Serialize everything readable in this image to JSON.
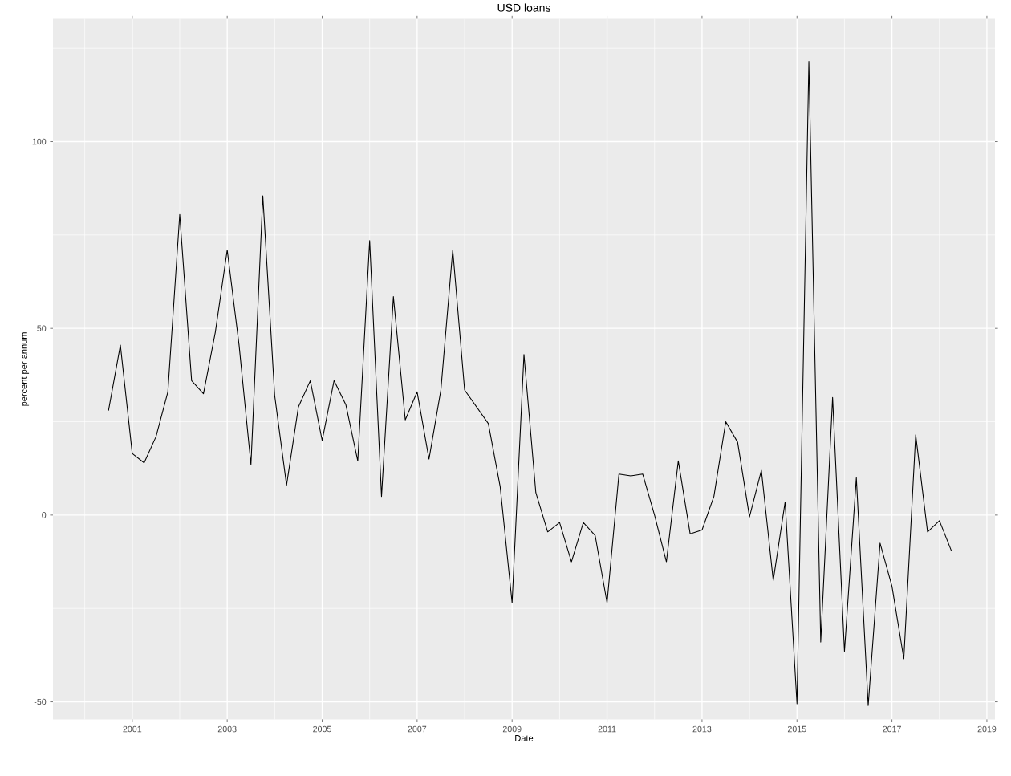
{
  "chart_data": {
    "type": "line",
    "title": "USD loans",
    "xlabel": "Date",
    "ylabel": "percent per annum",
    "color": "#000000",
    "grid": true,
    "x": [
      "2000-07",
      "2000-10",
      "2001-01",
      "2001-04",
      "2001-07",
      "2001-10",
      "2002-01",
      "2002-04",
      "2002-07",
      "2002-10",
      "2003-01",
      "2003-04",
      "2003-07",
      "2003-10",
      "2004-01",
      "2004-04",
      "2004-07",
      "2004-10",
      "2005-01",
      "2005-04",
      "2005-07",
      "2005-10",
      "2006-01",
      "2006-04",
      "2006-07",
      "2006-10",
      "2007-01",
      "2007-04",
      "2007-07",
      "2007-10",
      "2008-01",
      "2008-07",
      "2008-10",
      "2009-01",
      "2009-04",
      "2009-07",
      "2009-10",
      "2010-01",
      "2010-04",
      "2010-07",
      "2010-10",
      "2011-01",
      "2011-04",
      "2011-07",
      "2011-10",
      "2012-01",
      "2012-04",
      "2012-07",
      "2012-10",
      "2013-01",
      "2013-04",
      "2013-07",
      "2013-10",
      "2014-01",
      "2014-04",
      "2014-07",
      "2014-10",
      "2015-01",
      "2015-04",
      "2015-07",
      "2015-10",
      "2016-01",
      "2016-04",
      "2016-07",
      "2016-10",
      "2017-01",
      "2017-04",
      "2017-07",
      "2017-10",
      "2018-01",
      "2018-04"
    ],
    "values": [
      28,
      45.5,
      16.5,
      14,
      21,
      33,
      80.5,
      36,
      32.5,
      49,
      71,
      45.5,
      13.5,
      85.5,
      32,
      8,
      29,
      36,
      20,
      36,
      29.5,
      14.5,
      73.5,
      5,
      58.5,
      25.5,
      33,
      15,
      33.5,
      71,
      33.5,
      24.5,
      7.5,
      -23.5,
      43,
      6,
      -4.5,
      -2,
      -12.5,
      -2,
      -5.5,
      -23.5,
      11,
      10.5,
      11,
      0,
      -12.5,
      14.5,
      -5,
      -4,
      5,
      25,
      19.5,
      -0.5,
      12,
      -17.5,
      3.5,
      -50.5,
      121.5,
      -34,
      31.5,
      -36.5,
      10,
      -51,
      -7.5,
      -19,
      -38.5,
      21.5,
      -4.5,
      -1.5,
      -9.5
    ],
    "xlim": [
      "1999-05",
      "2019-03"
    ],
    "ylim": [
      -54.7,
      132.9
    ],
    "xticks": [
      {
        "value": "2000",
        "label": null
      },
      "2001",
      {
        "value": "2002",
        "label": null
      },
      "2003",
      {
        "value": "2004",
        "label": null
      },
      "2005",
      {
        "value": "2006",
        "label": null
      },
      "2007",
      {
        "value": "2008",
        "label": null
      },
      "2009",
      {
        "value": "2010",
        "label": null
      },
      "2011",
      {
        "value": "2012",
        "label": null
      },
      "2013",
      {
        "value": "2014",
        "label": null
      },
      "2015",
      {
        "value": "2016",
        "label": null
      },
      "2017",
      {
        "value": "2018",
        "label": null
      },
      "2019"
    ],
    "yticks": [
      -50,
      {
        "value": -25,
        "label": null
      },
      0,
      {
        "value": 25,
        "label": null
      },
      50,
      {
        "value": 75,
        "label": null
      },
      100,
      {
        "value": 125,
        "label": null
      }
    ]
  }
}
